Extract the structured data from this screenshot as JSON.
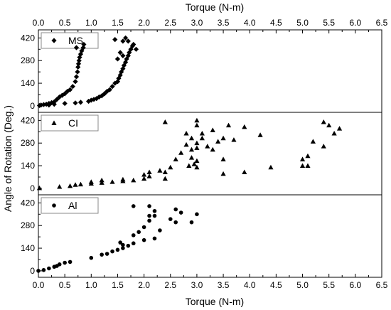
{
  "chart_data": {
    "type": "scatter",
    "x_label_top": "Torque (N-m)",
    "x_label_bottom": "Torque (N-m)",
    "y_label": "Angle of Rotation (Deg.)",
    "x_range": [
      0.0,
      6.5
    ],
    "x_ticks": [
      "0.0",
      "0.5",
      "1.0",
      "1.5",
      "2.0",
      "2.5",
      "3.0",
      "3.5",
      "4.0",
      "4.5",
      "5.0",
      "5.5",
      "6.0",
      "6.5"
    ],
    "y_range": [
      -40,
      470
    ],
    "y_ticks": [
      "0",
      "140",
      "280",
      "420"
    ],
    "grid": false,
    "legend_position": "top-left of each panel",
    "panels": [
      {
        "name": "MS",
        "marker": "diamond",
        "points": [
          [
            0.02,
            2
          ],
          [
            0.05,
            5
          ],
          [
            0.1,
            8
          ],
          [
            0.15,
            10
          ],
          [
            0.2,
            15
          ],
          [
            0.25,
            20
          ],
          [
            0.3,
            25
          ],
          [
            0.35,
            40
          ],
          [
            0.4,
            55
          ],
          [
            0.45,
            65
          ],
          [
            0.5,
            75
          ],
          [
            0.55,
            90
          ],
          [
            0.6,
            100
          ],
          [
            0.65,
            120
          ],
          [
            0.7,
            150
          ],
          [
            0.72,
            180
          ],
          [
            0.74,
            210
          ],
          [
            0.75,
            240
          ],
          [
            0.76,
            260
          ],
          [
            0.77,
            280
          ],
          [
            0.78,
            300
          ],
          [
            0.8,
            320
          ],
          [
            0.82,
            340
          ],
          [
            0.85,
            360
          ],
          [
            0.72,
            360
          ],
          [
            0.86,
            380
          ],
          [
            0.2,
            5
          ],
          [
            0.3,
            10
          ],
          [
            0.5,
            15
          ],
          [
            0.7,
            18
          ],
          [
            0.8,
            22
          ],
          [
            0.95,
            28
          ],
          [
            1.0,
            35
          ],
          [
            1.05,
            40
          ],
          [
            1.1,
            45
          ],
          [
            1.15,
            55
          ],
          [
            1.2,
            62
          ],
          [
            1.25,
            75
          ],
          [
            1.3,
            90
          ],
          [
            1.35,
            100
          ],
          [
            1.4,
            120
          ],
          [
            1.45,
            140
          ],
          [
            1.5,
            150
          ],
          [
            1.52,
            170
          ],
          [
            1.55,
            190
          ],
          [
            1.57,
            210
          ],
          [
            1.6,
            230
          ],
          [
            1.62,
            250
          ],
          [
            1.65,
            270
          ],
          [
            1.67,
            290
          ],
          [
            1.7,
            310
          ],
          [
            1.72,
            330
          ],
          [
            1.75,
            350
          ],
          [
            1.78,
            370
          ],
          [
            1.8,
            380
          ],
          [
            1.85,
            350
          ],
          [
            1.6,
            400
          ],
          [
            1.45,
            410
          ],
          [
            1.65,
            420
          ],
          [
            1.7,
            400
          ],
          [
            1.55,
            330
          ],
          [
            1.5,
            290
          ],
          [
            1.6,
            310
          ]
        ]
      },
      {
        "name": "CI",
        "marker": "triangle",
        "points": [
          [
            0.02,
            2
          ],
          [
            0.4,
            10
          ],
          [
            0.6,
            15
          ],
          [
            0.7,
            22
          ],
          [
            0.8,
            25
          ],
          [
            1.0,
            30
          ],
          [
            1.2,
            35
          ],
          [
            1.4,
            40
          ],
          [
            1.6,
            45
          ],
          [
            1.8,
            50
          ],
          [
            2.0,
            60
          ],
          [
            1.0,
            40
          ],
          [
            1.2,
            50
          ],
          [
            1.6,
            55
          ],
          [
            2.0,
            85
          ],
          [
            2.1,
            75
          ],
          [
            2.1,
            100
          ],
          [
            2.3,
            110
          ],
          [
            2.4,
            100
          ],
          [
            2.4,
            60
          ],
          [
            2.5,
            130
          ],
          [
            2.6,
            180
          ],
          [
            2.7,
            220
          ],
          [
            2.8,
            270
          ],
          [
            2.9,
            310
          ],
          [
            2.8,
            340
          ],
          [
            2.9,
            190
          ],
          [
            3.0,
            280
          ],
          [
            2.9,
            240
          ],
          [
            3.0,
            130
          ],
          [
            3.0,
            170
          ],
          [
            3.0,
            250
          ],
          [
            3.0,
            390
          ],
          [
            3.0,
            420
          ],
          [
            3.1,
            340
          ],
          [
            3.1,
            310
          ],
          [
            3.2,
            260
          ],
          [
            3.3,
            240
          ],
          [
            3.3,
            360
          ],
          [
            3.5,
            180
          ],
          [
            3.5,
            90
          ],
          [
            3.5,
            310
          ],
          [
            3.4,
            290
          ],
          [
            3.6,
            390
          ],
          [
            3.7,
            300
          ],
          [
            3.9,
            380
          ],
          [
            3.9,
            100
          ],
          [
            4.2,
            330
          ],
          [
            4.4,
            130
          ],
          [
            2.95,
            150
          ],
          [
            2.85,
            140
          ],
          [
            2.4,
            410
          ],
          [
            5.0,
            140
          ],
          [
            5.0,
            180
          ],
          [
            5.1,
            200
          ],
          [
            5.2,
            290
          ],
          [
            5.4,
            260
          ],
          [
            5.4,
            410
          ],
          [
            5.5,
            390
          ],
          [
            5.6,
            340
          ],
          [
            5.7,
            370
          ],
          [
            5.1,
            140
          ]
        ]
      },
      {
        "name": "Al",
        "marker": "circle",
        "points": [
          [
            0.0,
            0
          ],
          [
            0.1,
            5
          ],
          [
            0.2,
            15
          ],
          [
            0.3,
            25
          ],
          [
            0.35,
            30
          ],
          [
            0.4,
            40
          ],
          [
            0.5,
            50
          ],
          [
            0.6,
            55
          ],
          [
            1.0,
            80
          ],
          [
            1.2,
            100
          ],
          [
            1.3,
            105
          ],
          [
            1.4,
            120
          ],
          [
            1.5,
            130
          ],
          [
            1.6,
            140
          ],
          [
            1.6,
            160
          ],
          [
            1.7,
            155
          ],
          [
            1.8,
            170
          ],
          [
            1.8,
            220
          ],
          [
            1.9,
            240
          ],
          [
            2.0,
            270
          ],
          [
            2.0,
            190
          ],
          [
            2.1,
            310
          ],
          [
            2.1,
            340
          ],
          [
            2.2,
            370
          ],
          [
            2.2,
            200
          ],
          [
            2.3,
            250
          ],
          [
            2.5,
            320
          ],
          [
            2.6,
            300
          ],
          [
            2.6,
            380
          ],
          [
            2.7,
            360
          ],
          [
            2.9,
            300
          ],
          [
            3.0,
            350
          ],
          [
            1.8,
            400
          ],
          [
            2.1,
            400
          ],
          [
            2.2,
            340
          ],
          [
            1.55,
            175
          ]
        ]
      }
    ]
  }
}
